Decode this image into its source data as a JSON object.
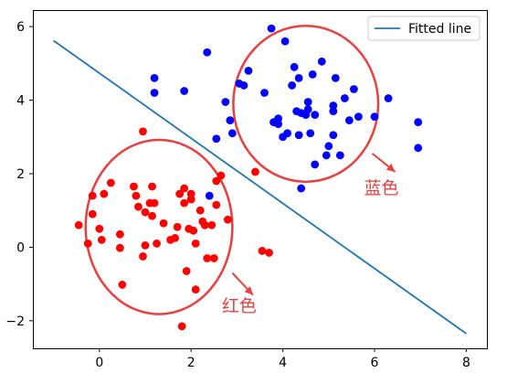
{
  "chart_data": {
    "type": "scatter",
    "xlim": [
      -1.45,
      8.45
    ],
    "ylim": [
      -2.75,
      6.45
    ],
    "xticks": [
      0,
      2,
      4,
      6,
      8
    ],
    "yticks": [
      -2,
      0,
      2,
      4,
      6
    ],
    "xtick_labels": [
      "0",
      "2",
      "4",
      "6",
      "8"
    ],
    "ytick_labels": [
      "−2",
      "0",
      "2",
      "4",
      "6"
    ],
    "grid": false,
    "legend_position": "top-right",
    "series": [
      {
        "kind": "scatter",
        "color": "#ff0000",
        "points": [
          [
            -0.45,
            0.6
          ],
          [
            -0.25,
            0.1
          ],
          [
            -0.15,
            1.4
          ],
          [
            -0.15,
            0.9
          ],
          [
            0.0,
            0.5
          ],
          [
            0.05,
            0.2
          ],
          [
            0.1,
            1.45
          ],
          [
            0.25,
            1.75
          ],
          [
            0.45,
            0.35
          ],
          [
            0.45,
            -0.02
          ],
          [
            0.5,
            -1.02
          ],
          [
            0.75,
            1.65
          ],
          [
            0.8,
            1.4
          ],
          [
            0.85,
            1.1
          ],
          [
            0.95,
            -0.25
          ],
          [
            0.95,
            3.15
          ],
          [
            1.0,
            0.05
          ],
          [
            1.0,
            0.95
          ],
          [
            1.1,
            1.2
          ],
          [
            1.15,
            1.65
          ],
          [
            1.15,
            0.85
          ],
          [
            1.2,
            1.2
          ],
          [
            1.25,
            0.1
          ],
          [
            1.4,
            0.65
          ],
          [
            1.55,
            0.2
          ],
          [
            1.65,
            0.25
          ],
          [
            1.7,
            0.55
          ],
          [
            1.75,
            1.45
          ],
          [
            1.8,
            -2.15
          ],
          [
            1.85,
            1.6
          ],
          [
            1.85,
            1.2
          ],
          [
            1.9,
            -0.65
          ],
          [
            1.95,
            0.5
          ],
          [
            2.0,
            1.45
          ],
          [
            2.0,
            1.3
          ],
          [
            2.05,
            0.45
          ],
          [
            2.1,
            0.1
          ],
          [
            2.1,
            -1.15
          ],
          [
            2.2,
            1.0
          ],
          [
            2.25,
            0.7
          ],
          [
            2.3,
            0.6
          ],
          [
            2.35,
            -0.3
          ],
          [
            2.45,
            0.6
          ],
          [
            2.5,
            -0.3
          ],
          [
            2.55,
            1.15
          ],
          [
            2.55,
            1.8
          ],
          [
            2.65,
            1.95
          ],
          [
            2.8,
            0.75
          ],
          [
            3.4,
            2.05
          ],
          [
            3.55,
            -0.1
          ],
          [
            3.7,
            -0.15
          ]
        ]
      },
      {
        "kind": "scatter",
        "color": "#0000ff",
        "points": [
          [
            1.2,
            4.6
          ],
          [
            1.2,
            4.2
          ],
          [
            1.85,
            4.25
          ],
          [
            2.35,
            5.3
          ],
          [
            2.4,
            1.4
          ],
          [
            2.55,
            2.95
          ],
          [
            2.75,
            3.95
          ],
          [
            2.85,
            3.45
          ],
          [
            2.9,
            3.1
          ],
          [
            3.05,
            4.45
          ],
          [
            3.15,
            4.4
          ],
          [
            3.25,
            4.8
          ],
          [
            3.6,
            4.2
          ],
          [
            3.75,
            5.95
          ],
          [
            3.8,
            3.4
          ],
          [
            3.9,
            3.35
          ],
          [
            3.9,
            3.5
          ],
          [
            4.0,
            3.0
          ],
          [
            4.05,
            5.6
          ],
          [
            4.1,
            3.1
          ],
          [
            4.2,
            4.4
          ],
          [
            4.25,
            4.9
          ],
          [
            4.3,
            3.7
          ],
          [
            4.35,
            4.6
          ],
          [
            4.35,
            3.05
          ],
          [
            4.4,
            1.6
          ],
          [
            4.4,
            3.65
          ],
          [
            4.5,
            3.6
          ],
          [
            4.55,
            3.75
          ],
          [
            4.55,
            3.95
          ],
          [
            4.6,
            3.1
          ],
          [
            4.65,
            4.7
          ],
          [
            4.7,
            2.25
          ],
          [
            4.7,
            3.6
          ],
          [
            4.85,
            5.05
          ],
          [
            4.95,
            2.5
          ],
          [
            5.0,
            2.75
          ],
          [
            5.1,
            3.85
          ],
          [
            5.1,
            3.7
          ],
          [
            5.1,
            3.05
          ],
          [
            5.15,
            4.6
          ],
          [
            5.25,
            2.5
          ],
          [
            5.35,
            4.05
          ],
          [
            5.45,
            3.45
          ],
          [
            5.55,
            4.3
          ],
          [
            5.65,
            3.55
          ],
          [
            6.0,
            3.55
          ],
          [
            6.3,
            4.05
          ],
          [
            6.95,
            3.4
          ],
          [
            6.95,
            2.7
          ]
        ]
      },
      {
        "kind": "line",
        "name": "Fitted line",
        "color": "#1f77b4",
        "x": [
          -1.0,
          8.0
        ],
        "y": [
          5.62,
          -2.35
        ]
      }
    ],
    "ellipses": [
      {
        "name": "red-cluster-ellipse",
        "color": "#e84040",
        "center": [
          1.3,
          0.55
        ],
        "radius": [
          1.6,
          2.37
        ]
      },
      {
        "name": "blue-cluster-ellipse",
        "color": "#e84040",
        "center": [
          4.5,
          3.9
        ],
        "radius": [
          1.58,
          2.12
        ]
      }
    ],
    "annotations": [
      {
        "name": "blue-annotation",
        "text": "蓝色",
        "color": "#e84040",
        "arrow_tail": [
          5.95,
          2.55
        ],
        "arrow_head": [
          6.45,
          2.05
        ],
        "text_pos": [
          6.15,
          1.45
        ]
      },
      {
        "name": "red-annotation",
        "text": "红色",
        "color": "#e84040",
        "arrow_tail": [
          2.9,
          -0.7
        ],
        "arrow_head": [
          3.35,
          -1.3
        ],
        "text_pos": [
          3.05,
          -1.75
        ]
      }
    ]
  }
}
